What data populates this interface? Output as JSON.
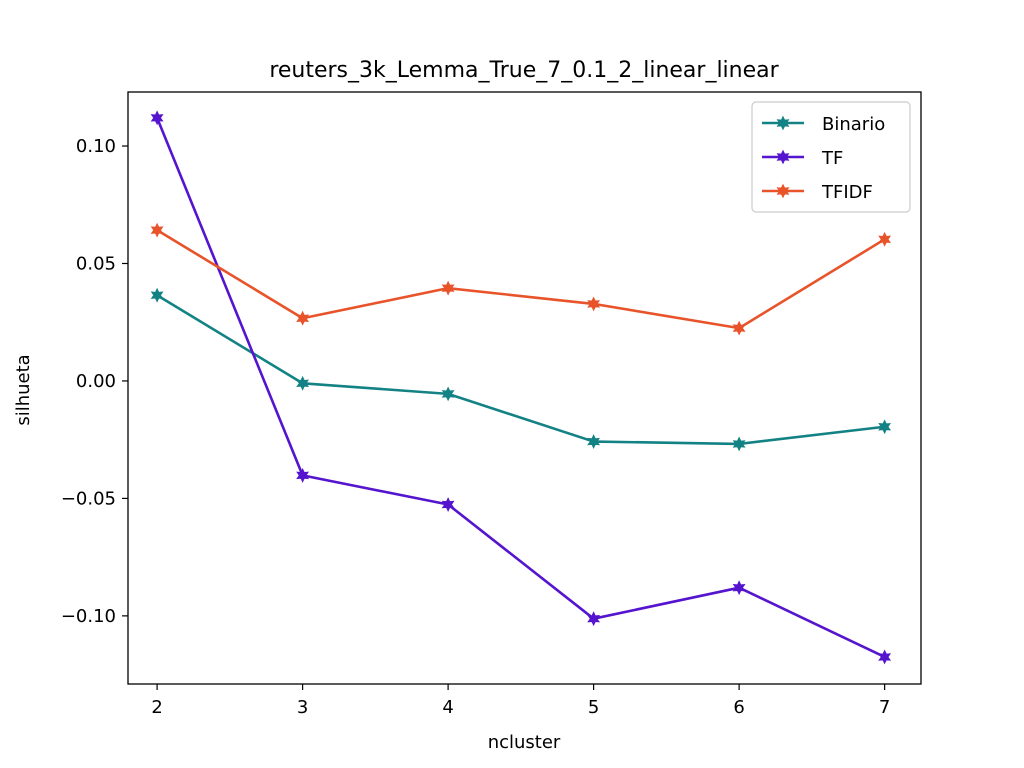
{
  "chart_data": {
    "type": "line",
    "title": "reuters_3k_Lemma_True_7_0.1_2_linear_linear",
    "xlabel": "ncluster",
    "ylabel": "silhueta",
    "x": [
      2,
      3,
      4,
      5,
      6,
      7
    ],
    "xlim": [
      1.8,
      7.25
    ],
    "ylim": [
      -0.129,
      0.123
    ],
    "x_ticks": [
      2,
      3,
      4,
      5,
      6,
      7
    ],
    "x_tick_labels": [
      "2",
      "3",
      "4",
      "5",
      "6",
      "7"
    ],
    "y_ticks": [
      -0.1,
      -0.05,
      0.0,
      0.05,
      0.1
    ],
    "y_tick_labels": [
      "−0.10",
      "−0.05",
      "0.00",
      "0.05",
      "0.10"
    ],
    "grid": false,
    "legend_position": "top-right",
    "marker": "star",
    "series": [
      {
        "name": "Binario",
        "color": "#138284",
        "values": [
          0.0365,
          -0.001,
          -0.0055,
          -0.0258,
          -0.0268,
          -0.0195
        ]
      },
      {
        "name": "TF",
        "color": "#5514ce",
        "values": [
          0.112,
          -0.0402,
          -0.0526,
          -0.1012,
          -0.088,
          -0.1175
        ]
      },
      {
        "name": "TFIDF",
        "color": "#e8532a",
        "values": [
          0.0642,
          0.0267,
          0.0395,
          0.0328,
          0.0225,
          0.0603
        ]
      }
    ]
  }
}
